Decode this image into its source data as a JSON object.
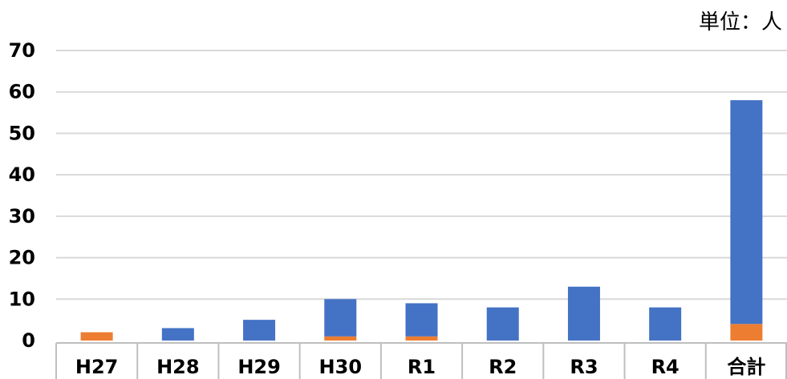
{
  "unit_label": "単位：人",
  "colors": {
    "series_blue": "#4472C4",
    "series_orange": "#ED7D31",
    "grid": "#D9D9D9",
    "table_border": "#BFBFBF"
  },
  "chart_data": {
    "type": "bar",
    "stacked": true,
    "title": "",
    "xlabel": "",
    "ylabel": "",
    "ylim": [
      0,
      70
    ],
    "yticks": [
      0,
      10,
      20,
      30,
      40,
      50,
      60,
      70
    ],
    "grid": true,
    "legend": "none",
    "categories": [
      "H27",
      "H28",
      "H29",
      "H30",
      "R1",
      "R2",
      "R3",
      "R4",
      "合計"
    ],
    "series": [
      {
        "color": "#ED7D31",
        "values": [
          2,
          0,
          0,
          1,
          1,
          0,
          0,
          0,
          4
        ]
      },
      {
        "color": "#4472C4",
        "values": [
          0,
          3,
          5,
          9,
          8,
          8,
          13,
          8,
          54
        ]
      }
    ]
  }
}
